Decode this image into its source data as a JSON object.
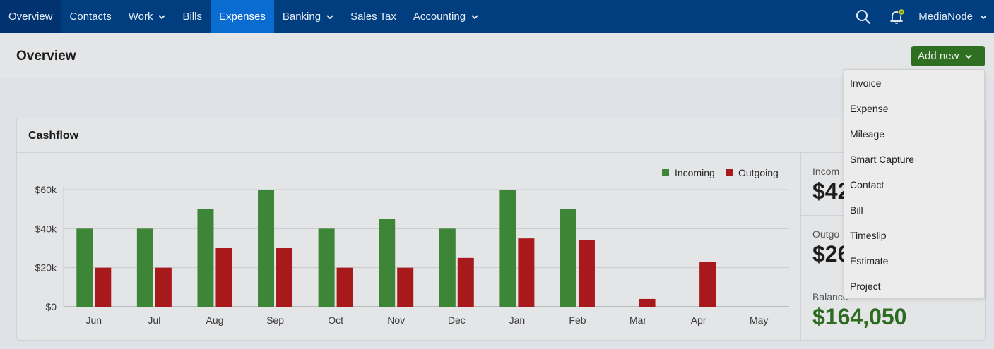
{
  "nav": {
    "items": [
      {
        "label": "Overview",
        "dropdown": false
      },
      {
        "label": "Contacts",
        "dropdown": false
      },
      {
        "label": "Work",
        "dropdown": true
      },
      {
        "label": "Bills",
        "dropdown": false
      },
      {
        "label": "Expenses",
        "dropdown": false,
        "active": true
      },
      {
        "label": "Banking",
        "dropdown": true
      },
      {
        "label": "Sales Tax",
        "dropdown": false
      },
      {
        "label": "Accounting",
        "dropdown": true
      }
    ],
    "user": "MediaNode",
    "icons": [
      "search-icon",
      "notification-bell-icon"
    ]
  },
  "header": {
    "title": "Overview",
    "add_new_label": "Add new"
  },
  "add_new_menu": {
    "items": [
      "Invoice",
      "Expense",
      "Mileage",
      "Smart Capture",
      "Contact",
      "Bill",
      "Timeslip",
      "Estimate",
      "Project"
    ]
  },
  "cashflow": {
    "title": "Cashflow",
    "summary": {
      "incoming_label": "Incom",
      "incoming_value": "$42",
      "outgoing_label": "Outgo",
      "outgoing_value": "$26",
      "balance_label": "Balance",
      "balance_value": "$164,050"
    }
  },
  "colors": {
    "nav_bg": "#003e80",
    "nav_active": "#0a6bd0",
    "incoming": "#3d8537",
    "outgoing": "#a8191c",
    "add_button": "#2f6f22",
    "balance": "#2e6b22"
  },
  "chart_data": {
    "type": "bar",
    "categories": [
      "Jun",
      "Jul",
      "Aug",
      "Sep",
      "Oct",
      "Nov",
      "Dec",
      "Jan",
      "Feb",
      "Mar",
      "Apr",
      "May"
    ],
    "series": [
      {
        "name": "Incoming",
        "color": "#3d8537",
        "values": [
          40000,
          40000,
          50000,
          60000,
          40000,
          45000,
          40000,
          60000,
          50000,
          0,
          0,
          0
        ]
      },
      {
        "name": "Outgoing",
        "color": "#a8191c",
        "values": [
          20000,
          20000,
          30000,
          30000,
          20000,
          20000,
          25000,
          35000,
          34000,
          4000,
          23000,
          0
        ]
      }
    ],
    "yticks": [
      "$0",
      "$20k",
      "$40k",
      "$60k"
    ],
    "ylim": [
      0,
      60000
    ],
    "grid": true,
    "legend": "top-right"
  }
}
